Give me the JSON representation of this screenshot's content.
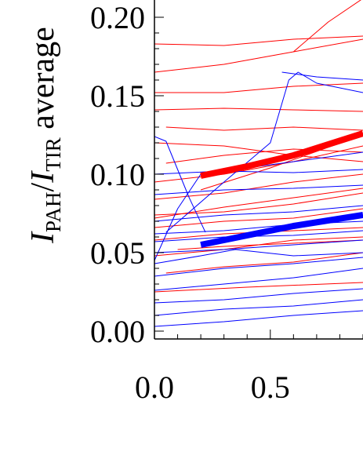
{
  "chart_data": {
    "type": "line",
    "title": "",
    "ylabel": {
      "parts": [
        {
          "text": "I",
          "style": "italic"
        },
        {
          "text": "PAH",
          "style": "sub"
        },
        {
          "text": "/",
          "style": "normal"
        },
        {
          "text": "I",
          "style": "italic"
        },
        {
          "text": "TIR",
          "style": "sub"
        },
        {
          "text": " average",
          "style": "normal"
        }
      ]
    },
    "xlabel": "",
    "xlim": [
      0.0,
      0.9
    ],
    "ylim": [
      -0.005,
      0.215
    ],
    "xticks": [
      {
        "value": 0.0,
        "label": "0.0"
      },
      {
        "value": 0.5,
        "label": "0.5"
      }
    ],
    "yticks": [
      {
        "value": 0.0,
        "label": "0.00"
      },
      {
        "value": 0.05,
        "label": "0.05"
      },
      {
        "value": 0.1,
        "label": "0.10"
      },
      {
        "value": 0.15,
        "label": "0.15"
      },
      {
        "value": 0.2,
        "label": "0.20"
      }
    ],
    "colors": {
      "red": "#ff0000",
      "blue": "#0000ff"
    },
    "series": [
      {
        "color": "#ff0000",
        "width": 8,
        "x": [
          0.2,
          0.4,
          0.6,
          0.9
        ],
        "y": [
          0.099,
          0.105,
          0.112,
          0.126
        ]
      },
      {
        "color": "#0000ff",
        "width": 8,
        "x": [
          0.2,
          0.4,
          0.6,
          0.9
        ],
        "y": [
          0.055,
          0.061,
          0.067,
          0.074
        ]
      },
      {
        "color": "#ff0000",
        "width": 1,
        "x": [
          0.0,
          0.3,
          0.6,
          0.9
        ],
        "y": [
          0.183,
          0.182,
          0.186,
          0.188
        ]
      },
      {
        "color": "#ff0000",
        "width": 1,
        "x": [
          0.0,
          0.3,
          0.6,
          0.9
        ],
        "y": [
          0.165,
          0.17,
          0.178,
          0.186
        ]
      },
      {
        "color": "#ff0000",
        "width": 1,
        "x": [
          0.0,
          0.3,
          0.6,
          0.9
        ],
        "y": [
          0.152,
          0.152,
          0.156,
          0.158
        ]
      },
      {
        "color": "#ff0000",
        "width": 1,
        "x": [
          0.0,
          0.3,
          0.6,
          0.9
        ],
        "y": [
          0.141,
          0.142,
          0.141,
          0.14
        ]
      },
      {
        "color": "#ff0000",
        "width": 1,
        "x": [
          0.05,
          0.3,
          0.6,
          0.9
        ],
        "y": [
          0.13,
          0.128,
          0.13,
          0.128
        ]
      },
      {
        "color": "#ff0000",
        "width": 1,
        "x": [
          0.0,
          0.3,
          0.6,
          0.9
        ],
        "y": [
          0.12,
          0.118,
          0.112,
          0.108
        ]
      },
      {
        "color": "#ff0000",
        "width": 1,
        "x": [
          0.05,
          0.3,
          0.6,
          0.9
        ],
        "y": [
          0.107,
          0.112,
          0.116,
          0.114
        ]
      },
      {
        "color": "#ff0000",
        "width": 1,
        "x": [
          0.0,
          0.3,
          0.6,
          0.9
        ],
        "y": [
          0.095,
          0.1,
          0.108,
          0.118
        ]
      },
      {
        "color": "#ff0000",
        "width": 1,
        "x": [
          0.0,
          0.3,
          0.6,
          0.9
        ],
        "y": [
          0.084,
          0.088,
          0.095,
          0.1
        ]
      },
      {
        "color": "#ff0000",
        "width": 1,
        "x": [
          0.0,
          0.3,
          0.6,
          0.9
        ],
        "y": [
          0.074,
          0.076,
          0.081,
          0.088
        ]
      },
      {
        "color": "#ff0000",
        "width": 1,
        "x": [
          0.0,
          0.3,
          0.6,
          0.9
        ],
        "y": [
          0.066,
          0.07,
          0.072,
          0.078
        ]
      },
      {
        "color": "#ff0000",
        "width": 1,
        "x": [
          0.0,
          0.3,
          0.6,
          0.9
        ],
        "y": [
          0.058,
          0.062,
          0.064,
          0.066
        ]
      },
      {
        "color": "#ff0000",
        "width": 1,
        "x": [
          0.0,
          0.3,
          0.6,
          0.9
        ],
        "y": [
          0.048,
          0.052,
          0.058,
          0.06
        ]
      },
      {
        "color": "#ff0000",
        "width": 1,
        "x": [
          0.05,
          0.3,
          0.6,
          0.9
        ],
        "y": [
          0.037,
          0.041,
          0.044,
          0.05
        ]
      },
      {
        "color": "#ff0000",
        "width": 1,
        "x": [
          0.0,
          0.4,
          0.9
        ],
        "y": [
          0.025,
          0.028,
          0.031
        ]
      },
      {
        "color": "#ff0000",
        "width": 1,
        "x": [
          0.2,
          0.5,
          0.9
        ],
        "y": [
          0.09,
          0.104,
          0.125
        ]
      },
      {
        "color": "#ff0000",
        "width": 1,
        "x": [
          0.0,
          0.3,
          0.6,
          0.9
        ],
        "y": [
          0.072,
          0.079,
          0.085,
          0.091
        ]
      },
      {
        "color": "#ff0000",
        "width": 1,
        "x": [
          0.1,
          0.3,
          0.6,
          0.9
        ],
        "y": [
          0.052,
          0.054,
          0.056,
          0.058
        ]
      },
      {
        "color": "#ff0000",
        "width": 1,
        "x": [
          0.6,
          0.75,
          0.9
        ],
        "y": [
          0.178,
          0.197,
          0.212
        ]
      },
      {
        "color": "#0000ff",
        "width": 1,
        "x": [
          0.05,
          0.3,
          0.5,
          0.58,
          0.62,
          0.7,
          0.9
        ],
        "y": [
          0.063,
          0.095,
          0.12,
          0.16,
          0.165,
          0.158,
          0.152
        ]
      },
      {
        "color": "#0000ff",
        "width": 1,
        "x": [
          0.0,
          0.1,
          0.2,
          0.9
        ],
        "y": [
          0.045,
          0.078,
          0.1,
          0.114
        ]
      },
      {
        "color": "#0000ff",
        "width": 1,
        "x": [
          0.0,
          0.05,
          0.15,
          0.22
        ],
        "y": [
          0.124,
          0.121,
          0.085,
          0.063
        ]
      },
      {
        "color": "#0000ff",
        "width": 1,
        "x": [
          0.0,
          0.3,
          0.6,
          0.9
        ],
        "y": [
          0.1,
          0.102,
          0.101,
          0.103
        ]
      },
      {
        "color": "#0000ff",
        "width": 1,
        "x": [
          0.0,
          0.3,
          0.6,
          0.9
        ],
        "y": [
          0.087,
          0.09,
          0.091,
          0.093
        ]
      },
      {
        "color": "#0000ff",
        "width": 1,
        "x": [
          0.0,
          0.3,
          0.6,
          0.9
        ],
        "y": [
          0.07,
          0.074,
          0.076,
          0.08
        ]
      },
      {
        "color": "#0000ff",
        "width": 1,
        "x": [
          0.0,
          0.3,
          0.6,
          0.9
        ],
        "y": [
          0.062,
          0.064,
          0.068,
          0.07
        ]
      },
      {
        "color": "#0000ff",
        "width": 1,
        "x": [
          0.0,
          0.3,
          0.6,
          0.9
        ],
        "y": [
          0.05,
          0.052,
          0.055,
          0.058
        ]
      },
      {
        "color": "#0000ff",
        "width": 1,
        "x": [
          0.0,
          0.2,
          0.35,
          0.6,
          0.9
        ],
        "y": [
          0.043,
          0.048,
          0.052,
          0.048,
          0.05
        ]
      },
      {
        "color": "#0000ff",
        "width": 1,
        "x": [
          0.0,
          0.3,
          0.6,
          0.9
        ],
        "y": [
          0.035,
          0.04,
          0.043,
          0.047
        ]
      },
      {
        "color": "#0000ff",
        "width": 1,
        "x": [
          0.0,
          0.3,
          0.6,
          0.9
        ],
        "y": [
          0.026,
          0.03,
          0.034,
          0.04
        ]
      },
      {
        "color": "#0000ff",
        "width": 1,
        "x": [
          0.0,
          0.3,
          0.6,
          0.9
        ],
        "y": [
          0.018,
          0.02,
          0.024,
          0.027
        ]
      },
      {
        "color": "#0000ff",
        "width": 1,
        "x": [
          0.0,
          0.3,
          0.6,
          0.9
        ],
        "y": [
          0.01,
          0.014,
          0.016,
          0.02
        ]
      },
      {
        "color": "#0000ff",
        "width": 1,
        "x": [
          0.0,
          0.3,
          0.6,
          0.9
        ],
        "y": [
          0.003,
          0.006,
          0.01,
          0.013
        ]
      },
      {
        "color": "#0000ff",
        "width": 1,
        "x": [
          0.0,
          0.3,
          0.6,
          0.9
        ],
        "y": [
          0.057,
          0.06,
          0.061,
          0.064
        ]
      },
      {
        "color": "#0000ff",
        "width": 1,
        "x": [
          0.55,
          0.7,
          0.9
        ],
        "y": [
          0.165,
          0.162,
          0.16
        ]
      }
    ]
  }
}
